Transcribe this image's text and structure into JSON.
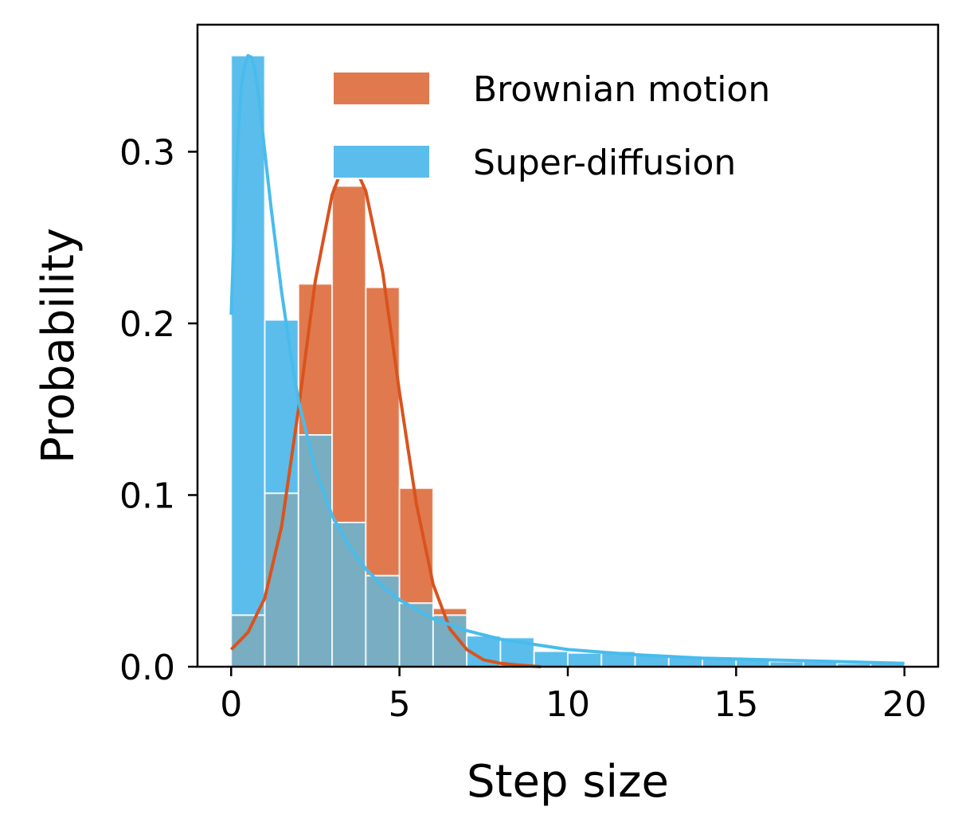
{
  "chart_data": {
    "type": "bar",
    "xlabel": "Step size",
    "ylabel": "Probability",
    "xlim": [
      -1,
      21
    ],
    "ylim": [
      0,
      0.374
    ],
    "xticks": [
      0,
      5,
      10,
      15,
      20
    ],
    "yticks": [
      0.0,
      0.1,
      0.2,
      0.3
    ],
    "xtick_labels": [
      "0",
      "5",
      "10",
      "15",
      "20"
    ],
    "ytick_labels": [
      "0.0",
      "0.1",
      "0.2",
      "0.3"
    ],
    "grid": false,
    "legend_position": "top-right",
    "bin_width": 1,
    "series": [
      {
        "name": "Brownian motion",
        "kind": "histogram",
        "color": "#E07A4E",
        "bin_starts": [
          0,
          1,
          2,
          3,
          4,
          5,
          6
        ],
        "values": [
          0.03,
          0.101,
          0.223,
          0.28,
          0.221,
          0.104,
          0.034
        ]
      },
      {
        "name": "Super-diffusion",
        "kind": "histogram",
        "color": "#5BBDEB",
        "bin_starts": [
          0,
          1,
          2,
          3,
          4,
          5,
          6,
          7,
          8,
          9,
          10,
          11,
          12,
          13,
          14,
          15,
          16,
          17,
          18,
          19
        ],
        "values": [
          0.356,
          0.202,
          0.135,
          0.084,
          0.053,
          0.037,
          0.03,
          0.018,
          0.017,
          0.009,
          0.008,
          0.009,
          0.007,
          0.006,
          0.005,
          0.004,
          0.003,
          0.003,
          0.002,
          0.002
        ]
      }
    ],
    "curves": [
      {
        "name": "Brownian motion fit",
        "color": "#D9531E",
        "x": [
          0,
          0.5,
          1,
          1.5,
          2,
          2.5,
          3,
          3.25,
          3.5,
          3.75,
          4,
          4.5,
          5,
          5.5,
          6,
          6.5,
          7,
          7.5,
          8,
          8.5,
          9.2
        ],
        "y": [
          0.01,
          0.02,
          0.04,
          0.082,
          0.15,
          0.225,
          0.275,
          0.288,
          0.292,
          0.288,
          0.277,
          0.23,
          0.16,
          0.095,
          0.048,
          0.022,
          0.01,
          0.004,
          0.002,
          0.001,
          0.0
        ]
      },
      {
        "name": "Super-diffusion fit",
        "color": "#48BCEC",
        "x": [
          0,
          0.1,
          0.2,
          0.3,
          0.4,
          0.5,
          0.6,
          0.7,
          0.8,
          1.0,
          1.2,
          1.5,
          1.8,
          2.0,
          2.5,
          3.0,
          3.5,
          4.0,
          4.5,
          5.0,
          6.0,
          7.0,
          8.0,
          9.0,
          10.0,
          12.0,
          14.0,
          16.0,
          18.0,
          20.0
        ],
        "y": [
          0.205,
          0.26,
          0.305,
          0.338,
          0.35,
          0.356,
          0.355,
          0.348,
          0.335,
          0.3,
          0.265,
          0.218,
          0.178,
          0.155,
          0.115,
          0.088,
          0.07,
          0.057,
          0.047,
          0.039,
          0.028,
          0.021,
          0.016,
          0.013,
          0.01,
          0.007,
          0.005,
          0.004,
          0.003,
          0.002
        ]
      }
    ],
    "overlap_color": "#78ADC2"
  }
}
